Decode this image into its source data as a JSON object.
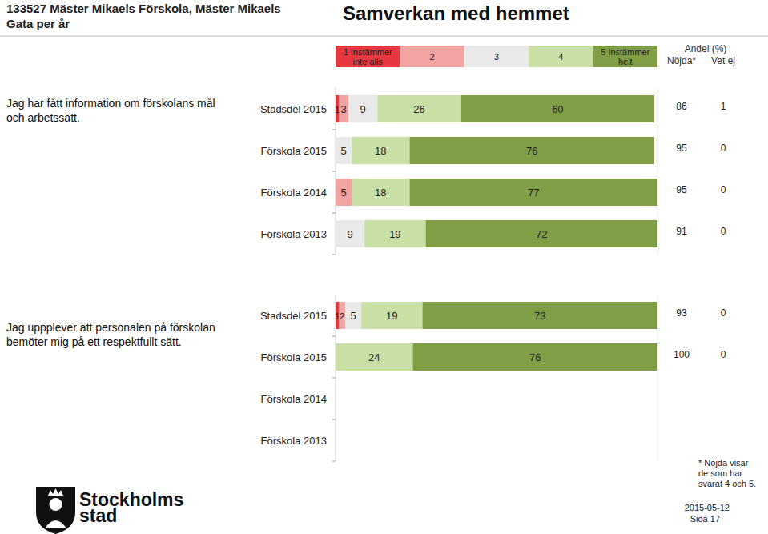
{
  "header": {
    "unit": "133527 Mäster Mikaels Förskola, Mäster Mikaels Gata per år",
    "title": "Samverkan med hemmet"
  },
  "columns": {
    "group": "Andel (%)",
    "satisfied": "Nöjda*",
    "dont_know": "Vet ej"
  },
  "chart_data": [
    {
      "type": "bar",
      "orientation": "horizontal",
      "stacked": true,
      "data_labels": true,
      "tick_labels": false,
      "title": "Jag har fått information om förskolans mål och arbetssätt.",
      "categories": [
        "Stadsdel 2015",
        "Förskola 2015",
        "Förskola 2014",
        "Förskola 2013"
      ],
      "xlim": [
        0,
        100
      ],
      "series": [
        {
          "name": "1 Instämmer inte alls",
          "color": "#e8373e",
          "values": [
            1,
            null,
            null,
            null
          ]
        },
        {
          "name": "2",
          "color": "#f4a3a3",
          "values": [
            3,
            null,
            5,
            null
          ]
        },
        {
          "name": "3",
          "color": "#e9e9e9",
          "values": [
            9,
            5,
            null,
            9
          ]
        },
        {
          "name": "4",
          "color": "#cadfa6",
          "values": [
            26,
            18,
            18,
            19
          ]
        },
        {
          "name": "5 Instämmer helt",
          "color": "#7f9e46",
          "values": [
            60,
            76,
            77,
            72
          ]
        }
      ],
      "satisfied": [
        86,
        95,
        95,
        91
      ],
      "dont_know": [
        1,
        0,
        0,
        0
      ]
    },
    {
      "type": "bar",
      "orientation": "horizontal",
      "stacked": true,
      "data_labels": true,
      "tick_labels": false,
      "title": "Jag uppplever att personalen på förskolan bemöter mig på ett respektfullt sätt.",
      "categories": [
        "Stadsdel 2015",
        "Förskola 2015",
        "Förskola 2014",
        "Förskola 2013"
      ],
      "xlim": [
        0,
        100
      ],
      "series": [
        {
          "name": "1 Instämmer inte alls",
          "color": "#e8373e",
          "values": [
            1,
            null,
            null,
            null
          ]
        },
        {
          "name": "2",
          "color": "#f4a3a3",
          "values": [
            2,
            null,
            null,
            null
          ]
        },
        {
          "name": "3",
          "color": "#e9e9e9",
          "values": [
            5,
            null,
            null,
            null
          ]
        },
        {
          "name": "4",
          "color": "#cadfa6",
          "values": [
            19,
            24,
            null,
            null
          ]
        },
        {
          "name": "5 Instämmer helt",
          "color": "#7f9e46",
          "values": [
            73,
            76,
            null,
            null
          ]
        }
      ],
      "satisfied": [
        93,
        100,
        null,
        null
      ],
      "dont_know": [
        0,
        0,
        null,
        null
      ]
    }
  ],
  "footer": {
    "note": [
      "* Nöjda visar",
      "de som har",
      "svarat 4 och 5."
    ],
    "logo": [
      "Stockholms",
      "stad"
    ],
    "date": "2015-05-12",
    "page": "Sida 17"
  }
}
